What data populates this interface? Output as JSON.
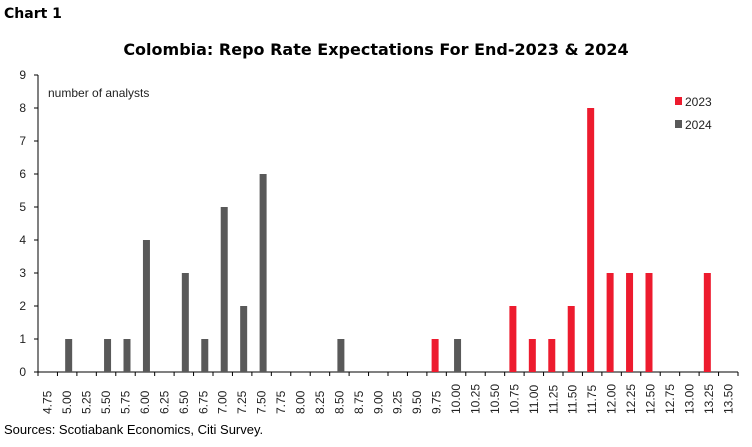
{
  "chart_label": "Chart 1",
  "source": "Sources: Scotiabank Economics, Citi Survey.",
  "chart_data": {
    "type": "bar",
    "title": "Colombia: Repo Rate Expectations For End-2023 & 2024",
    "ylabel": "number of analysts",
    "xlabel": "",
    "ylim": [
      0,
      9
    ],
    "yticks": [
      0,
      1,
      2,
      3,
      4,
      5,
      6,
      7,
      8,
      9
    ],
    "grid": false,
    "legend_position": "top-right",
    "categories": [
      "4.75",
      "5.00",
      "5.25",
      "5.50",
      "5.75",
      "6.00",
      "6.25",
      "6.50",
      "6.75",
      "7.00",
      "7.25",
      "7.50",
      "7.75",
      "8.00",
      "8.25",
      "8.50",
      "8.75",
      "9.00",
      "9.25",
      "9.50",
      "9.75",
      "10.00",
      "10.25",
      "10.50",
      "10.75",
      "11.00",
      "11.25",
      "11.50",
      "11.75",
      "12.00",
      "12.25",
      "12.50",
      "12.75",
      "13.00",
      "13.25",
      "13.50"
    ],
    "series": [
      {
        "name": "2023",
        "color": "#ed1b2e",
        "values": [
          0,
          0,
          0,
          0,
          0,
          0,
          0,
          0,
          0,
          0,
          0,
          0,
          0,
          0,
          0,
          0,
          0,
          0,
          0,
          0,
          1,
          0,
          0,
          0,
          2,
          1,
          1,
          2,
          8,
          3,
          3,
          3,
          0,
          0,
          3,
          0
        ]
      },
      {
        "name": "2024",
        "color": "#595959",
        "values": [
          0,
          1,
          0,
          1,
          1,
          4,
          0,
          3,
          1,
          5,
          2,
          6,
          0,
          0,
          0,
          1,
          0,
          0,
          0,
          0,
          0,
          1,
          0,
          0,
          0,
          0,
          0,
          0,
          0,
          0,
          0,
          0,
          0,
          0,
          0,
          0
        ]
      }
    ]
  }
}
